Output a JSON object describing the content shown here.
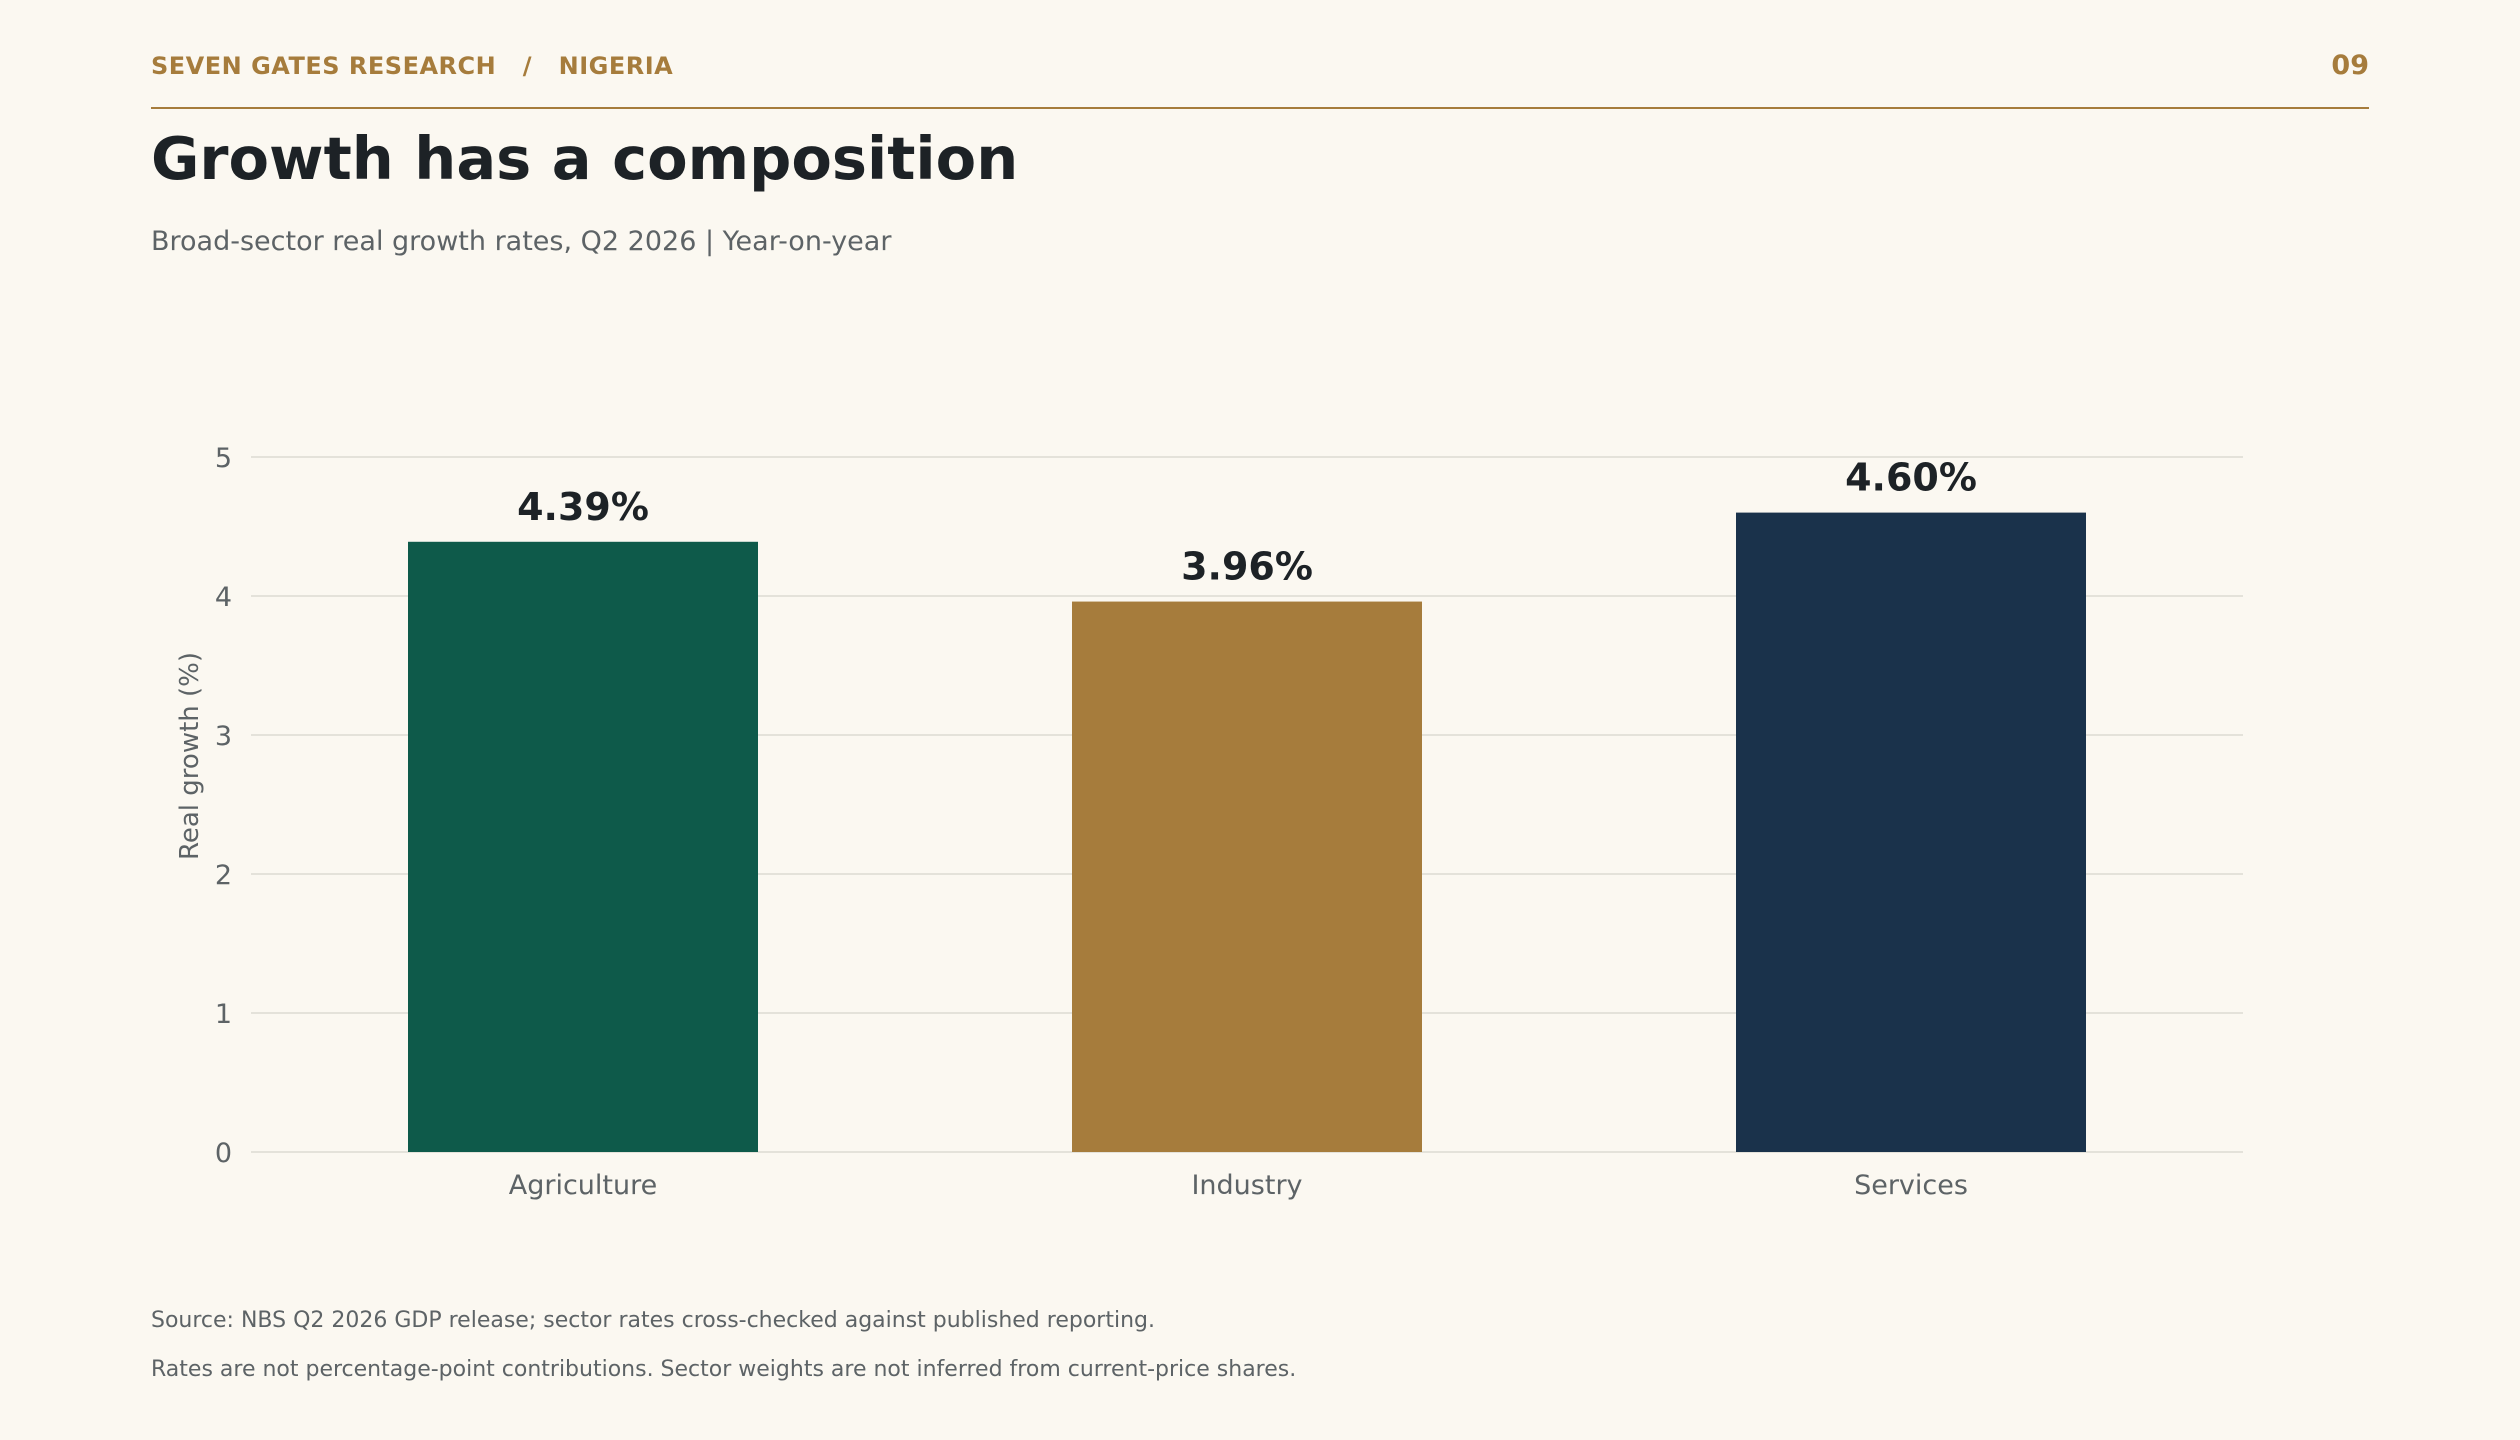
{
  "header": {
    "brand": "SEVEN GATES RESEARCH   /   NIGERIA",
    "page_number": "09"
  },
  "title": "Growth has a composition",
  "subtitle": "Broad-sector real growth rates, Q2 2026  |  Year-on-year",
  "colors": {
    "accent": "#a67c3c",
    "agriculture": "#0e5a4a",
    "industry": "#a67c3c",
    "services": "#1a324b",
    "text_dark": "#1d2226",
    "text_muted": "#5d6366",
    "grid": "#dcdad3"
  },
  "chart_data": {
    "type": "bar",
    "categories": [
      "Agriculture",
      "Industry",
      "Services"
    ],
    "values": [
      4.39,
      3.96,
      4.6
    ],
    "value_labels": [
      "4.39%",
      "3.96%",
      "4.60%"
    ],
    "bar_colors": [
      "#0e5a4a",
      "#a67c3c",
      "#1a324b"
    ],
    "ylabel": "Real growth (%)",
    "xlabel": "",
    "ylim": [
      0,
      5
    ],
    "yticks": [
      "0",
      "1",
      "2",
      "3",
      "4",
      "5"
    ],
    "grid": "horizontal"
  },
  "footer": {
    "source": "Source: NBS Q2 2026 GDP release; sector rates cross-checked against published reporting.",
    "note": "Rates are not percentage-point contributions. Sector weights are not inferred from current-price shares."
  }
}
